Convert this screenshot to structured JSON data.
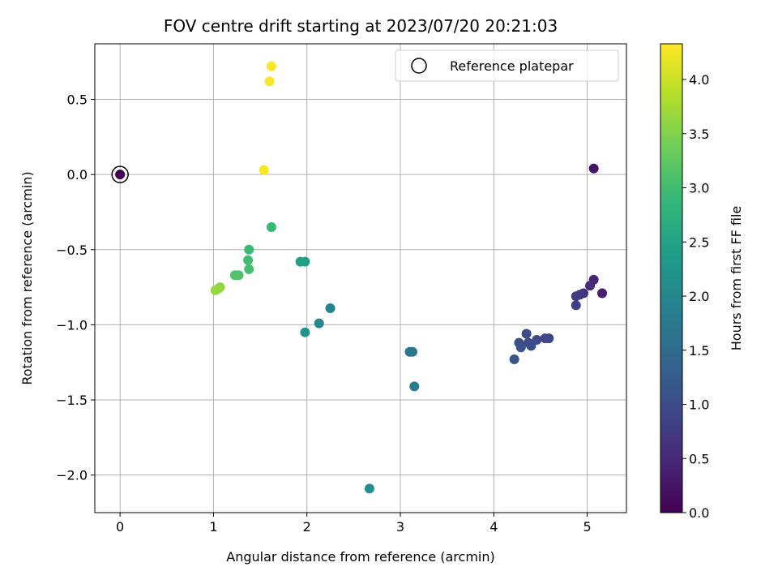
{
  "chart_data": {
    "type": "scatter",
    "title": "FOV centre drift starting at 2023/07/20 20:21:03",
    "xlabel": "Angular distance from reference (arcmin)",
    "ylabel": "Rotation from reference (arcmin)",
    "xlim": [
      -0.27,
      5.42
    ],
    "ylim": [
      -2.25,
      0.87
    ],
    "xticks": [
      0,
      1,
      2,
      3,
      4,
      5
    ],
    "xtick_labels": [
      "0",
      "1",
      "2",
      "3",
      "4",
      "5"
    ],
    "yticks": [
      0.5,
      0.0,
      -0.5,
      -1.0,
      -1.5,
      -2.0
    ],
    "ytick_labels": [
      "0.5",
      "0.0",
      "−0.5",
      "−1.0",
      "−1.5",
      "−2.0"
    ],
    "grid": true,
    "legend": {
      "position": "top-right",
      "entries": [
        "Reference platepar"
      ]
    },
    "colorbar": {
      "label": "Hours from first FF file",
      "colormap": "viridis",
      "range": [
        0.0,
        4.33
      ],
      "ticks": [
        0.0,
        0.5,
        1.0,
        1.5,
        2.0,
        2.5,
        3.0,
        3.5,
        4.0
      ],
      "tick_labels": [
        "0.0",
        "0.5",
        "1.0",
        "1.5",
        "2.0",
        "2.5",
        "3.0",
        "3.5",
        "4.0"
      ]
    },
    "reference": {
      "x": 0,
      "y": 0
    },
    "points": [
      {
        "x": 0.0,
        "y": 0.0,
        "c": 0.0
      },
      {
        "x": 5.07,
        "y": 0.04,
        "c": 0.25
      },
      {
        "x": 5.16,
        "y": -0.79,
        "c": 0.35
      },
      {
        "x": 5.07,
        "y": -0.7,
        "c": 0.45
      },
      {
        "x": 5.03,
        "y": -0.74,
        "c": 0.55
      },
      {
        "x": 4.96,
        "y": -0.79,
        "c": 0.65
      },
      {
        "x": 4.92,
        "y": -0.8,
        "c": 0.7
      },
      {
        "x": 4.88,
        "y": -0.81,
        "c": 0.75
      },
      {
        "x": 4.88,
        "y": -0.87,
        "c": 0.8
      },
      {
        "x": 4.59,
        "y": -1.09,
        "c": 0.9
      },
      {
        "x": 4.55,
        "y": -1.09,
        "c": 0.92
      },
      {
        "x": 4.46,
        "y": -1.1,
        "c": 0.95
      },
      {
        "x": 4.35,
        "y": -1.06,
        "c": 0.98
      },
      {
        "x": 4.37,
        "y": -1.12,
        "c": 1.0
      },
      {
        "x": 4.4,
        "y": -1.14,
        "c": 1.02
      },
      {
        "x": 4.27,
        "y": -1.12,
        "c": 1.05
      },
      {
        "x": 4.29,
        "y": -1.15,
        "c": 1.08
      },
      {
        "x": 4.22,
        "y": -1.23,
        "c": 1.12
      },
      {
        "x": 3.1,
        "y": -1.18,
        "c": 1.7
      },
      {
        "x": 3.13,
        "y": -1.18,
        "c": 1.72
      },
      {
        "x": 3.15,
        "y": -1.41,
        "c": 1.78
      },
      {
        "x": 2.25,
        "y": -0.89,
        "c": 1.95
      },
      {
        "x": 2.13,
        "y": -0.99,
        "c": 2.02
      },
      {
        "x": 2.67,
        "y": -2.09,
        "c": 2.18
      },
      {
        "x": 1.98,
        "y": -1.05,
        "c": 2.25
      },
      {
        "x": 1.98,
        "y": -0.58,
        "c": 2.4
      },
      {
        "x": 1.93,
        "y": -0.58,
        "c": 2.45
      },
      {
        "x": 1.62,
        "y": -0.35,
        "c": 2.9
      },
      {
        "x": 1.38,
        "y": -0.5,
        "c": 2.95
      },
      {
        "x": 1.37,
        "y": -0.57,
        "c": 3.0
      },
      {
        "x": 1.38,
        "y": -0.63,
        "c": 3.05
      },
      {
        "x": 1.27,
        "y": -0.67,
        "c": 3.1
      },
      {
        "x": 1.23,
        "y": -0.67,
        "c": 3.12
      },
      {
        "x": 1.07,
        "y": -0.75,
        "c": 3.6
      },
      {
        "x": 1.05,
        "y": -0.76,
        "c": 3.62
      },
      {
        "x": 1.02,
        "y": -0.77,
        "c": 3.65
      },
      {
        "x": 1.54,
        "y": 0.03,
        "c": 4.3
      },
      {
        "x": 1.6,
        "y": 0.62,
        "c": 4.3
      },
      {
        "x": 1.62,
        "y": 0.72,
        "c": 4.32
      }
    ]
  }
}
